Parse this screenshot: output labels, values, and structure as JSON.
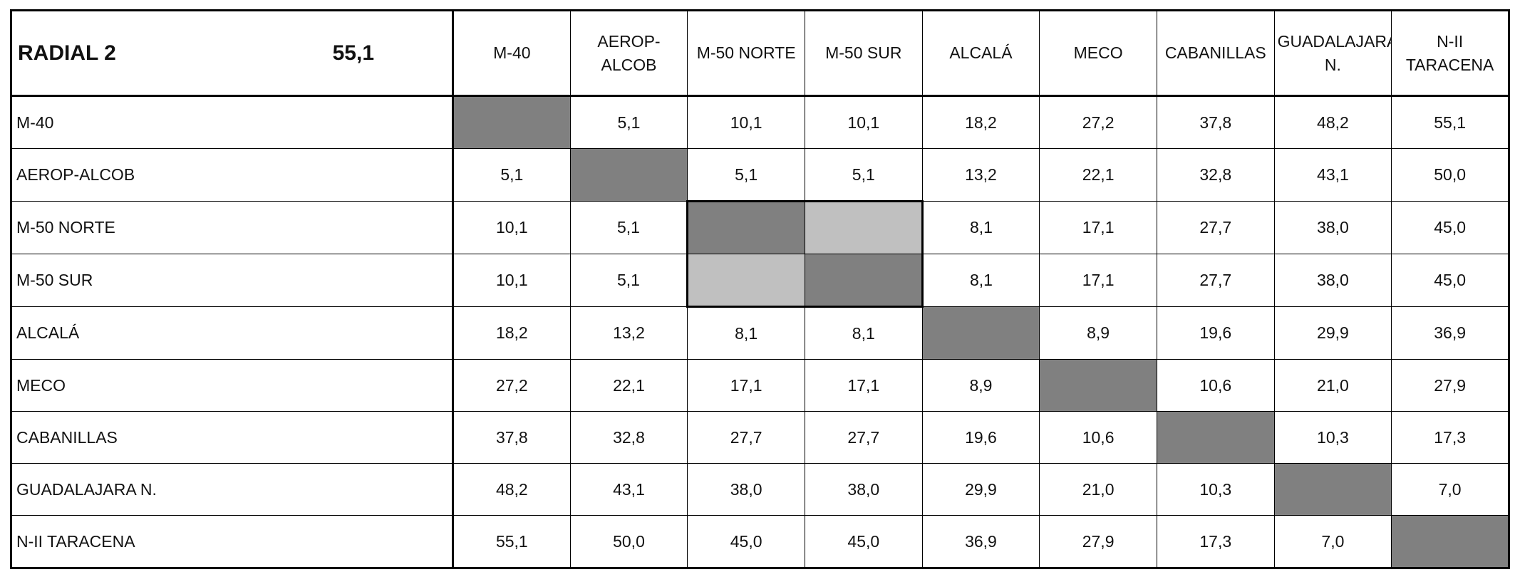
{
  "header": {
    "title": "RADIAL 2",
    "value": "55,1"
  },
  "columns": [
    "M-40",
    "AEROP-ALCOB",
    "M-50 NORTE",
    "M-50 SUR",
    "ALCALÁ",
    "MECO",
    "CABANILLAS",
    "GUADALAJARA N.",
    "N-II TARACENA"
  ],
  "rows": [
    {
      "label": "M-40",
      "cells": [
        null,
        "5,1",
        "10,1",
        "10,1",
        "18,2",
        "27,2",
        "37,8",
        "48,2",
        "55,1"
      ]
    },
    {
      "label": "AEROP-ALCOB",
      "cells": [
        "5,1",
        null,
        "5,1",
        "5,1",
        "13,2",
        "22,1",
        "32,8",
        "43,1",
        "50,0"
      ]
    },
    {
      "label": "M-50 NORTE",
      "cells": [
        "10,1",
        "5,1",
        null,
        null,
        "8,1",
        "17,1",
        "27,7",
        "38,0",
        "45,0"
      ]
    },
    {
      "label": "M-50 SUR",
      "cells": [
        "10,1",
        "5,1",
        null,
        null,
        "8,1",
        "17,1",
        "27,7",
        "38,0",
        "45,0"
      ]
    },
    {
      "label": "ALCALÁ",
      "cells": [
        "18,2",
        "13,2",
        "8,1",
        "8,1",
        null,
        "8,9",
        "19,6",
        "29,9",
        "36,9"
      ]
    },
    {
      "label": "MECO",
      "cells": [
        "27,2",
        "22,1",
        "17,1",
        "17,1",
        "8,9",
        null,
        "10,6",
        "21,0",
        "27,9"
      ]
    },
    {
      "label": "CABANILLAS",
      "cells": [
        "37,8",
        "32,8",
        "27,7",
        "27,7",
        "19,6",
        "10,6",
        null,
        "10,3",
        "17,3"
      ]
    },
    {
      "label": "GUADALAJARA N.",
      "cells": [
        "48,2",
        "43,1",
        "38,0",
        "38,0",
        "29,9",
        "21,0",
        "10,3",
        null,
        "7,0"
      ]
    },
    {
      "label": "N-II TARACENA",
      "cells": [
        "55,1",
        "50,0",
        "45,0",
        "45,0",
        "36,9",
        "27,9",
        "17,3",
        "7,0",
        null
      ]
    }
  ]
}
